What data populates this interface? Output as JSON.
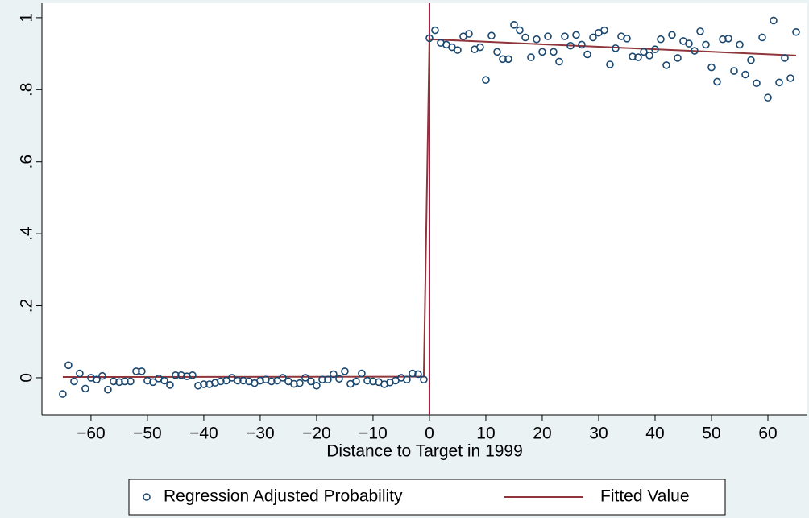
{
  "chart_data": {
    "type": "scatter",
    "xlabel": "Distance to Target in 1999",
    "xlim": [
      -68.7,
      67
    ],
    "ylim": [
      -0.103,
      1.04
    ],
    "xticks": [
      {
        "value": -60,
        "label": "−60"
      },
      {
        "value": -50,
        "label": "−50"
      },
      {
        "value": -40,
        "label": "−40"
      },
      {
        "value": -30,
        "label": "−30"
      },
      {
        "value": -20,
        "label": "−20"
      },
      {
        "value": -10,
        "label": "−10"
      },
      0,
      10,
      20,
      30,
      40,
      50,
      60
    ],
    "yticks": [
      0,
      {
        "value": 0.2,
        "label": ".2"
      },
      {
        "value": 0.4,
        "label": ".4"
      },
      {
        "value": 0.6,
        "label": ".6"
      },
      {
        "value": 0.8,
        "label": ".8"
      },
      1
    ],
    "xline": 0,
    "xline_color": "#a0143c",
    "series": [
      {
        "name": "Regression Adjusted Probability",
        "kind": "scatter",
        "color": "#1a476f",
        "x": [
          -65,
          -64,
          -63,
          -62,
          -61,
          -60,
          -59,
          -58,
          -57,
          -56,
          -55,
          -54,
          -53,
          -52,
          -51,
          -50,
          -49,
          -48,
          -47,
          -46,
          -45,
          -44,
          -43,
          -42,
          -41,
          -40,
          -39,
          -38,
          -37,
          -36,
          -35,
          -34,
          -33,
          -32,
          -31,
          -30,
          -29,
          -28,
          -27,
          -26,
          -25,
          -24,
          -23,
          -22,
          -21,
          -20,
          -19,
          -18,
          -17,
          -16,
          -15,
          -14,
          -13,
          -12,
          -11,
          -10,
          -9,
          -8,
          -7,
          -6,
          -5,
          -4,
          -3,
          -2,
          -1,
          0,
          1,
          2,
          3,
          4,
          5,
          6,
          7,
          8,
          9,
          10,
          11,
          12,
          13,
          14,
          15,
          16,
          17,
          18,
          19,
          20,
          21,
          22,
          23,
          24,
          25,
          26,
          27,
          28,
          29,
          30,
          31,
          32,
          33,
          34,
          35,
          36,
          37,
          38,
          39,
          40,
          41,
          42,
          43,
          44,
          45,
          46,
          47,
          48,
          49,
          50,
          51,
          52,
          53,
          54,
          55,
          56,
          57,
          58,
          59,
          60,
          61,
          62,
          63,
          64,
          65
        ],
        "values": [
          -0.045,
          0.035,
          -0.01,
          0.012,
          -0.03,
          0.0,
          -0.005,
          0.005,
          -0.033,
          -0.01,
          -0.012,
          -0.01,
          -0.01,
          0.018,
          0.018,
          -0.008,
          -0.012,
          -0.002,
          -0.008,
          -0.02,
          0.007,
          0.007,
          0.004,
          0.007,
          -0.022,
          -0.018,
          -0.018,
          -0.014,
          -0.01,
          -0.008,
          0.0,
          -0.008,
          -0.008,
          -0.01,
          -0.015,
          -0.008,
          -0.005,
          -0.01,
          -0.008,
          0.0,
          -0.01,
          -0.017,
          -0.015,
          0.0,
          -0.01,
          -0.022,
          -0.005,
          -0.005,
          0.01,
          -0.003,
          0.018,
          -0.017,
          -0.01,
          0.012,
          -0.008,
          -0.01,
          -0.012,
          -0.018,
          -0.013,
          -0.008,
          0.0,
          -0.005,
          0.012,
          0.01,
          -0.005,
          0.943,
          0.965,
          0.93,
          0.925,
          0.918,
          0.91,
          0.948,
          0.955,
          0.912,
          0.918,
          0.827,
          0.95,
          0.905,
          0.885,
          0.885,
          0.98,
          0.965,
          0.945,
          0.89,
          0.94,
          0.905,
          0.948,
          0.905,
          0.878,
          0.948,
          0.922,
          0.952,
          0.925,
          0.898,
          0.945,
          0.958,
          0.965,
          0.87,
          0.915,
          0.948,
          0.942,
          0.892,
          0.89,
          0.905,
          0.895,
          0.912,
          0.94,
          0.868,
          0.952,
          0.888,
          0.935,
          0.928,
          0.908,
          0.962,
          0.925,
          0.862,
          0.822,
          0.94,
          0.942,
          0.852,
          0.925,
          0.842,
          0.882,
          0.818,
          0.945,
          0.778,
          0.992,
          0.82,
          0.888,
          0.832,
          0.96
        ]
      },
      {
        "name": "Fitted Value",
        "kind": "line",
        "color": "#90353b",
        "x": [
          -65,
          -1,
          0,
          65
        ],
        "values": [
          0.002,
          0.003,
          0.94,
          0.895
        ]
      }
    ]
  }
}
